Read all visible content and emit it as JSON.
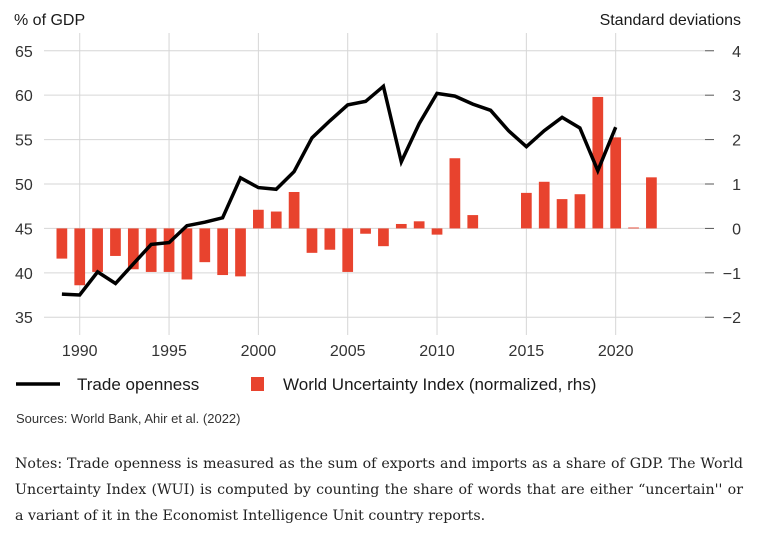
{
  "chart_data": {
    "type": "bar+line",
    "left_axis_label": "% of GDP",
    "right_axis_label": "Standard deviations",
    "left_ylim": [
      33,
      67
    ],
    "right_ylim": [
      -2.4,
      4.4
    ],
    "left_ticks": [
      35,
      40,
      45,
      50,
      55,
      60,
      65
    ],
    "right_ticks": [
      4,
      3,
      2,
      1,
      0,
      -1,
      -2
    ],
    "right_tick_labels": [
      "4",
      "3",
      "2",
      "1",
      "0",
      "−1",
      "−2"
    ],
    "xlim": [
      1988,
      2025
    ],
    "x_ticks": [
      1990,
      1995,
      2000,
      2005,
      2010,
      2015,
      2020
    ],
    "grid": true,
    "legend_position": "bottom",
    "series": [
      {
        "name": "Trade openness",
        "type": "line",
        "axis": "left",
        "color": "#000000",
        "x": [
          1989,
          1990,
          1991,
          1992,
          1993,
          1994,
          1995,
          1996,
          1997,
          1998,
          1999,
          2000,
          2001,
          2002,
          2003,
          2004,
          2005,
          2006,
          2007,
          2008,
          2009,
          2010,
          2011,
          2012,
          2013,
          2014,
          2015,
          2016,
          2017,
          2018,
          2019,
          2020,
          2021
        ],
        "y": [
          37.6,
          37.5,
          40.1,
          38.8,
          41.0,
          43.2,
          43.4,
          45.3,
          45.7,
          46.2,
          50.7,
          49.6,
          49.4,
          51.4,
          55.2,
          57.1,
          58.9,
          59.3,
          61.0,
          52.5,
          56.8,
          60.2,
          59.9,
          59.0,
          58.3,
          56.0,
          54.2,
          56.0,
          57.5,
          56.3,
          51.5,
          56.4,
          null
        ]
      },
      {
        "name": "World Uncertainty Index (normalized, rhs)",
        "type": "bar",
        "axis": "right",
        "color": "#e8432e",
        "x": [
          1989,
          1990,
          1991,
          1992,
          1993,
          1994,
          1995,
          1996,
          1997,
          1998,
          1999,
          2000,
          2001,
          2002,
          2003,
          2004,
          2005,
          2006,
          2007,
          2008,
          2009,
          2010,
          2011,
          2012,
          2013,
          2014,
          2015,
          2016,
          2017,
          2018,
          2019,
          2020,
          2021,
          2022
        ],
        "y": [
          -0.68,
          -1.28,
          -0.98,
          -0.62,
          -0.92,
          -0.98,
          -0.98,
          -1.15,
          -0.76,
          -1.05,
          -1.08,
          0.42,
          0.38,
          0.82,
          -0.55,
          -0.48,
          -0.98,
          -0.12,
          -0.4,
          0.1,
          0.16,
          -0.14,
          1.58,
          0.3,
          null,
          null,
          0.8,
          1.05,
          0.66,
          0.77,
          2.96,
          2.05,
          0.02,
          1.15
        ]
      }
    ]
  },
  "legend": {
    "line_label": "Trade openness",
    "bar_label": "World Uncertainty Index (normalized, rhs)"
  },
  "source": "Sources: World Bank, Ahir et al. (2022)",
  "notes": "Notes: Trade openness is measured as the sum of exports and imports as a share of GDP. The World Uncertainty Index (WUI) is computed by counting the share of words that are either “uncertain'' or a variant of it in the Economist Intelligence Unit country reports."
}
